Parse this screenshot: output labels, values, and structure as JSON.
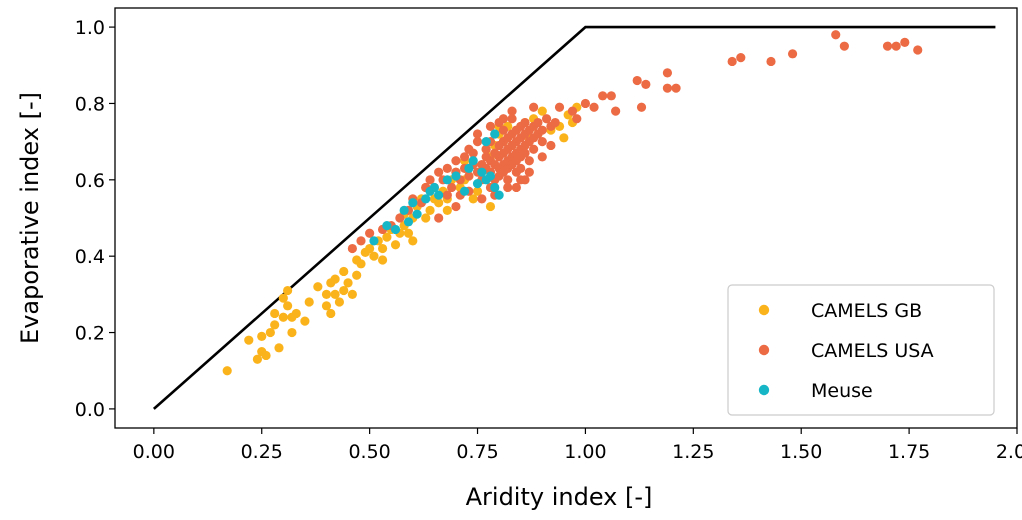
{
  "chart_data": {
    "type": "scatter",
    "title": "",
    "xlabel": "Aridity index [-]",
    "ylabel": "Evaporative index [-]",
    "xlim": [
      -0.09,
      2.0
    ],
    "ylim": [
      -0.05,
      1.05
    ],
    "xticks": [
      "0.00",
      "0.25",
      "0.50",
      "0.75",
      "1.00",
      "1.25",
      "1.50",
      "1.75",
      "2.00"
    ],
    "yticks": [
      "0.0",
      "0.2",
      "0.4",
      "0.6",
      "0.8",
      "1.0"
    ],
    "grid": false,
    "legend_position": "lower-right",
    "limit_line": {
      "color": "#000000",
      "x": [
        0,
        1,
        1.95
      ],
      "y": [
        0,
        1,
        1
      ]
    },
    "series": [
      {
        "name": "CAMELS GB",
        "color": "#fbb31c",
        "points": [
          [
            0.17,
            0.1
          ],
          [
            0.22,
            0.18
          ],
          [
            0.24,
            0.13
          ],
          [
            0.25,
            0.15
          ],
          [
            0.25,
            0.19
          ],
          [
            0.27,
            0.2
          ],
          [
            0.28,
            0.22
          ],
          [
            0.28,
            0.25
          ],
          [
            0.29,
            0.16
          ],
          [
            0.3,
            0.24
          ],
          [
            0.3,
            0.29
          ],
          [
            0.31,
            0.27
          ],
          [
            0.31,
            0.31
          ],
          [
            0.32,
            0.24
          ],
          [
            0.32,
            0.2
          ],
          [
            0.33,
            0.25
          ],
          [
            0.35,
            0.23
          ],
          [
            0.38,
            0.32
          ],
          [
            0.4,
            0.27
          ],
          [
            0.4,
            0.3
          ],
          [
            0.41,
            0.25
          ],
          [
            0.41,
            0.33
          ],
          [
            0.42,
            0.3
          ],
          [
            0.42,
            0.34
          ],
          [
            0.43,
            0.28
          ],
          [
            0.44,
            0.36
          ],
          [
            0.45,
            0.33
          ],
          [
            0.46,
            0.3
          ],
          [
            0.47,
            0.35
          ],
          [
            0.47,
            0.39
          ],
          [
            0.48,
            0.38
          ],
          [
            0.49,
            0.41
          ],
          [
            0.5,
            0.42
          ],
          [
            0.51,
            0.4
          ],
          [
            0.52,
            0.44
          ],
          [
            0.53,
            0.42
          ],
          [
            0.54,
            0.45
          ],
          [
            0.55,
            0.47
          ],
          [
            0.56,
            0.43
          ],
          [
            0.57,
            0.46
          ],
          [
            0.58,
            0.51
          ],
          [
            0.58,
            0.48
          ],
          [
            0.59,
            0.46
          ],
          [
            0.6,
            0.5
          ],
          [
            0.61,
            0.53
          ],
          [
            0.62,
            0.55
          ],
          [
            0.63,
            0.5
          ],
          [
            0.63,
            0.58
          ],
          [
            0.64,
            0.52
          ],
          [
            0.65,
            0.55
          ],
          [
            0.66,
            0.54
          ],
          [
            0.67,
            0.57
          ],
          [
            0.68,
            0.55
          ],
          [
            0.69,
            0.6
          ],
          [
            0.7,
            0.62
          ],
          [
            0.71,
            0.58
          ],
          [
            0.72,
            0.65
          ],
          [
            0.73,
            0.61
          ],
          [
            0.74,
            0.55
          ],
          [
            0.75,
            0.57
          ],
          [
            0.76,
            0.62
          ],
          [
            0.77,
            0.68
          ],
          [
            0.78,
            0.53
          ],
          [
            0.78,
            0.66
          ],
          [
            0.79,
            0.69
          ],
          [
            0.8,
            0.72
          ],
          [
            0.8,
            0.74
          ],
          [
            0.81,
            0.7
          ],
          [
            0.82,
            0.74
          ],
          [
            0.83,
            0.69
          ],
          [
            0.84,
            0.73
          ],
          [
            0.85,
            0.67
          ],
          [
            0.86,
            0.75
          ],
          [
            0.87,
            0.71
          ],
          [
            0.88,
            0.76
          ],
          [
            0.89,
            0.72
          ],
          [
            0.9,
            0.78
          ],
          [
            0.92,
            0.73
          ],
          [
            0.94,
            0.74
          ],
          [
            0.96,
            0.77
          ],
          [
            0.97,
            0.75
          ],
          [
            0.98,
            0.79
          ],
          [
            0.95,
            0.71
          ],
          [
            0.72,
            0.6
          ],
          [
            0.68,
            0.52
          ],
          [
            0.6,
            0.44
          ],
          [
            0.53,
            0.39
          ],
          [
            0.44,
            0.31
          ],
          [
            0.36,
            0.28
          ],
          [
            0.26,
            0.14
          ]
        ]
      },
      {
        "name": "CAMELS USA",
        "color": "#ec6a44",
        "points": [
          [
            0.46,
            0.42
          ],
          [
            0.48,
            0.44
          ],
          [
            0.5,
            0.46
          ],
          [
            0.53,
            0.47
          ],
          [
            0.55,
            0.48
          ],
          [
            0.57,
            0.5
          ],
          [
            0.59,
            0.52
          ],
          [
            0.6,
            0.55
          ],
          [
            0.62,
            0.54
          ],
          [
            0.63,
            0.58
          ],
          [
            0.64,
            0.6
          ],
          [
            0.65,
            0.58
          ],
          [
            0.66,
            0.62
          ],
          [
            0.67,
            0.6
          ],
          [
            0.68,
            0.63
          ],
          [
            0.69,
            0.58
          ],
          [
            0.7,
            0.62
          ],
          [
            0.7,
            0.65
          ],
          [
            0.71,
            0.6
          ],
          [
            0.72,
            0.66
          ],
          [
            0.72,
            0.63
          ],
          [
            0.73,
            0.68
          ],
          [
            0.73,
            0.57
          ],
          [
            0.74,
            0.64
          ],
          [
            0.74,
            0.67
          ],
          [
            0.75,
            0.62
          ],
          [
            0.75,
            0.7
          ],
          [
            0.76,
            0.64
          ],
          [
            0.76,
            0.6
          ],
          [
            0.77,
            0.66
          ],
          [
            0.77,
            0.63
          ],
          [
            0.77,
            0.68
          ],
          [
            0.78,
            0.62
          ],
          [
            0.78,
            0.65
          ],
          [
            0.78,
            0.7
          ],
          [
            0.78,
            0.58
          ],
          [
            0.79,
            0.64
          ],
          [
            0.79,
            0.67
          ],
          [
            0.79,
            0.72
          ],
          [
            0.79,
            0.6
          ],
          [
            0.8,
            0.63
          ],
          [
            0.8,
            0.66
          ],
          [
            0.8,
            0.69
          ],
          [
            0.8,
            0.61
          ],
          [
            0.8,
            0.75
          ],
          [
            0.81,
            0.64
          ],
          [
            0.81,
            0.67
          ],
          [
            0.81,
            0.7
          ],
          [
            0.81,
            0.62
          ],
          [
            0.81,
            0.73
          ],
          [
            0.82,
            0.65
          ],
          [
            0.82,
            0.68
          ],
          [
            0.82,
            0.71
          ],
          [
            0.82,
            0.63
          ],
          [
            0.82,
            0.6
          ],
          [
            0.83,
            0.66
          ],
          [
            0.83,
            0.69
          ],
          [
            0.83,
            0.72
          ],
          [
            0.83,
            0.64
          ],
          [
            0.83,
            0.76
          ],
          [
            0.84,
            0.67
          ],
          [
            0.84,
            0.7
          ],
          [
            0.84,
            0.73
          ],
          [
            0.84,
            0.65
          ],
          [
            0.84,
            0.62
          ],
          [
            0.85,
            0.68
          ],
          [
            0.85,
            0.71
          ],
          [
            0.85,
            0.74
          ],
          [
            0.85,
            0.66
          ],
          [
            0.85,
            0.63
          ],
          [
            0.86,
            0.69
          ],
          [
            0.86,
            0.72
          ],
          [
            0.86,
            0.75
          ],
          [
            0.86,
            0.67
          ],
          [
            0.87,
            0.7
          ],
          [
            0.87,
            0.73
          ],
          [
            0.87,
            0.65
          ],
          [
            0.88,
            0.71
          ],
          [
            0.88,
            0.74
          ],
          [
            0.88,
            0.68
          ],
          [
            0.89,
            0.72
          ],
          [
            0.89,
            0.75
          ],
          [
            0.9,
            0.73
          ],
          [
            0.9,
            0.7
          ],
          [
            0.91,
            0.76
          ],
          [
            0.92,
            0.74
          ],
          [
            0.93,
            0.75
          ],
          [
            0.88,
            0.79
          ],
          [
            0.85,
            0.6
          ],
          [
            0.84,
            0.58
          ],
          [
            0.82,
            0.58
          ],
          [
            0.79,
            0.56
          ],
          [
            0.76,
            0.55
          ],
          [
            0.7,
            0.53
          ],
          [
            0.68,
            0.56
          ],
          [
            0.66,
            0.5
          ],
          [
            0.75,
            0.72
          ],
          [
            0.78,
            0.74
          ],
          [
            0.81,
            0.76
          ],
          [
            0.83,
            0.78
          ],
          [
            0.97,
            0.78
          ],
          [
            0.98,
            0.76
          ],
          [
            1.0,
            0.8
          ],
          [
            1.02,
            0.79
          ],
          [
            1.04,
            0.82
          ],
          [
            1.06,
            0.82
          ],
          [
            1.07,
            0.78
          ],
          [
            1.12,
            0.86
          ],
          [
            1.13,
            0.79
          ],
          [
            1.14,
            0.85
          ],
          [
            1.19,
            0.84
          ],
          [
            1.19,
            0.88
          ],
          [
            1.21,
            0.84
          ],
          [
            1.34,
            0.91
          ],
          [
            1.36,
            0.92
          ],
          [
            1.43,
            0.91
          ],
          [
            1.48,
            0.93
          ],
          [
            1.58,
            0.98
          ],
          [
            1.6,
            0.95
          ],
          [
            1.7,
            0.95
          ],
          [
            1.72,
            0.95
          ],
          [
            1.74,
            0.96
          ],
          [
            1.77,
            0.94
          ],
          [
            0.94,
            0.79
          ],
          [
            0.92,
            0.69
          ],
          [
            0.9,
            0.66
          ],
          [
            0.87,
            0.62
          ],
          [
            0.86,
            0.6
          ],
          [
            0.73,
            0.61
          ],
          [
            0.71,
            0.56
          ]
        ]
      },
      {
        "name": "Meuse",
        "color": "#17b6c6",
        "points": [
          [
            0.51,
            0.44
          ],
          [
            0.54,
            0.48
          ],
          [
            0.56,
            0.47
          ],
          [
            0.58,
            0.52
          ],
          [
            0.59,
            0.49
          ],
          [
            0.6,
            0.54
          ],
          [
            0.61,
            0.51
          ],
          [
            0.63,
            0.55
          ],
          [
            0.64,
            0.57
          ],
          [
            0.65,
            0.58
          ],
          [
            0.66,
            0.56
          ],
          [
            0.68,
            0.6
          ],
          [
            0.7,
            0.61
          ],
          [
            0.72,
            0.57
          ],
          [
            0.73,
            0.63
          ],
          [
            0.74,
            0.65
          ],
          [
            0.75,
            0.59
          ],
          [
            0.76,
            0.62
          ],
          [
            0.77,
            0.6
          ],
          [
            0.78,
            0.61
          ],
          [
            0.79,
            0.58
          ],
          [
            0.8,
            0.56
          ],
          [
            0.77,
            0.7
          ],
          [
            0.79,
            0.72
          ]
        ]
      }
    ]
  }
}
